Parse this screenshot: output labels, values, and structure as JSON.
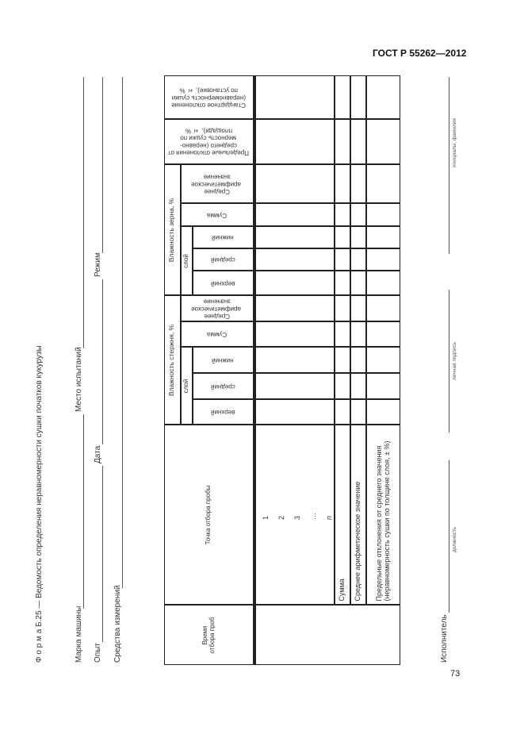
{
  "header": {
    "standard": "ГОСТ Р 55262—2012",
    "page": "73"
  },
  "form": {
    "title": "Ф о р м а  Б.25 — Ведомость определения неравномерности сушки початков кукурузы",
    "fields": {
      "machine": "Марка машины",
      "place": "Место испытаний",
      "experiment": "Опыт",
      "date": "Дата",
      "mode": "Режим",
      "instruments": "Средства измерений"
    }
  },
  "table": {
    "headers": {
      "time": "Время отбора проб",
      "point": "Точка отбора пробы",
      "stem_group": "Влажность стержня, %",
      "grain_group": "Влажность зерна, %",
      "layer": "слой",
      "upper": "верхний",
      "middle": "средний",
      "lower": "нижний",
      "sum": "Сумма",
      "mean": "Среднее арифметическое значение",
      "limit_dev": "Предельные отклонения от среднего (неравно-мерность сушки по площади), ± %",
      "std_dev": "Стандартное отклонение (неравномерность сушки по установке), ± %"
    },
    "row_numbers": [
      "1",
      "2",
      "3",
      "…",
      "n"
    ],
    "rows": {
      "sum": "Сумма",
      "mean": "Среднее арифметическое значение",
      "limit": "Предельные отклонения от среднего значения (неравномерность сушки по толщине слоя, ± %)"
    }
  },
  "signature": {
    "label": "Исполнитель",
    "position": "должность",
    "signature": "личная подпись",
    "name": "инициалы, фамилия"
  }
}
